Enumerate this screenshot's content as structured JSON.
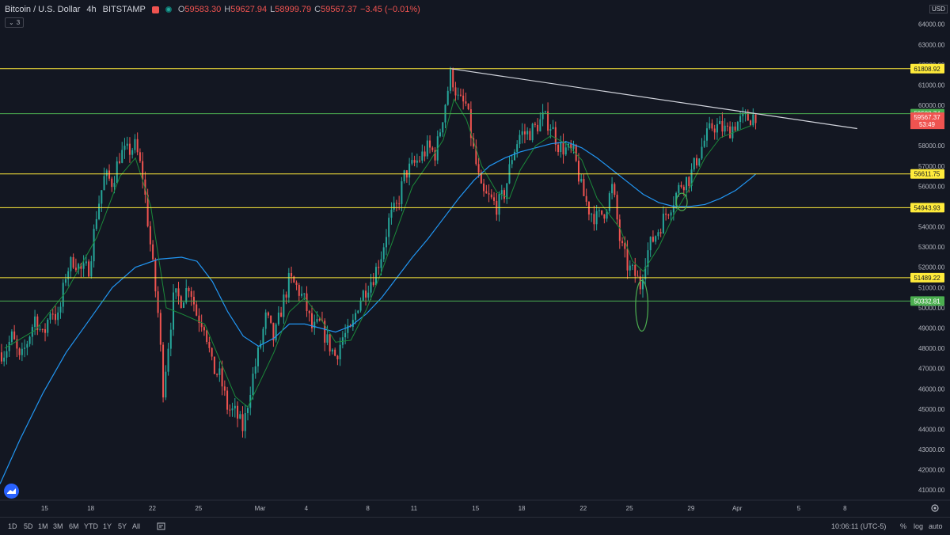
{
  "header": {
    "symbol": "Bitcoin / U.S. Dollar",
    "interval": "4h",
    "exchange": "BITSTAMP",
    "ohlc": [
      {
        "k": "O",
        "v": "59583.30"
      },
      {
        "k": "H",
        "v": "59627.94"
      },
      {
        "k": "L",
        "v": "58999.79"
      },
      {
        "k": "C",
        "v": "59567.37"
      }
    ],
    "change": "−3.45 (−0.01%)",
    "indicator_count": "3",
    "currency": "USD"
  },
  "colors": {
    "bg": "#131722",
    "up": "#26a69a",
    "down": "#ef5350",
    "yellow": "#ffeb3b",
    "green_line": "#4caf50",
    "ma_blue": "#2196f3",
    "ma_green": "#1b8a3a",
    "trendline": "#d1d4dc"
  },
  "bottom": {
    "ranges": [
      "1D",
      "5D",
      "1M",
      "3M",
      "6M",
      "YTD",
      "1Y",
      "5Y",
      "All"
    ],
    "time": "10:06:11 (UTC-5)",
    "pct": "%",
    "log": "log",
    "auto": "auto"
  },
  "chart_data": {
    "type": "candlestick",
    "title": "Bitcoin / U.S. Dollar · 4h · BITSTAMP",
    "ylim": [
      40500,
      65200
    ],
    "y_ticks": [
      41000,
      42000,
      43000,
      44000,
      45000,
      46000,
      47000,
      48000,
      49000,
      50000,
      51000,
      52000,
      53000,
      54000,
      55000,
      56000,
      57000,
      58000,
      59000,
      60000,
      61000,
      62000,
      63000,
      64000
    ],
    "y_tick_labels": [
      "41000.00",
      "42000.00",
      "43000.00",
      "44000.00",
      "45000.00",
      "46000.00",
      "47000.00",
      "48000.00",
      "49000.00",
      "50000.00",
      "51000.00",
      "52000.00",
      "53000.00",
      "54000.00",
      "55000.00",
      "56000.00",
      "57000.00",
      "58000.00",
      "59000.00",
      "60000.00",
      "61000.00",
      "62000.00",
      "63000.00",
      "64000.00"
    ],
    "x_ticks": [
      {
        "label": "15",
        "day": 14.6
      },
      {
        "label": "18",
        "day": 17.6
      },
      {
        "label": "22",
        "day": 21.6
      },
      {
        "label": "25",
        "day": 24.6
      },
      {
        "label": "Mar",
        "day": 28.6
      },
      {
        "label": "4",
        "day": 31.6
      },
      {
        "label": "8",
        "day": 35.6
      },
      {
        "label": "11",
        "day": 38.6
      },
      {
        "label": "15",
        "day": 42.6
      },
      {
        "label": "18",
        "day": 45.6
      },
      {
        "label": "22",
        "day": 49.6
      },
      {
        "label": "25",
        "day": 52.6
      },
      {
        "label": "29",
        "day": 56.6
      },
      {
        "label": "Apr",
        "day": 59.6
      },
      {
        "label": "5",
        "day": 63.6
      },
      {
        "label": "8",
        "day": 66.6
      }
    ],
    "x_range_days": [
      11.7,
      70.7
    ],
    "last_bar_day": 60.8,
    "closes": [
      [
        12.0,
        47800
      ],
      [
        12.5,
        48600
      ],
      [
        13.0,
        47300
      ],
      [
        13.5,
        48400
      ],
      [
        14.0,
        49600
      ],
      [
        14.5,
        48500
      ],
      [
        15.0,
        50000
      ],
      [
        15.5,
        49400
      ],
      [
        16.0,
        51800
      ],
      [
        16.5,
        52400
      ],
      [
        17.0,
        51800
      ],
      [
        17.5,
        52000
      ],
      [
        18.0,
        54800
      ],
      [
        18.5,
        56500
      ],
      [
        19.0,
        56200
      ],
      [
        19.5,
        57600
      ],
      [
        20.0,
        57700
      ],
      [
        20.5,
        58000
      ],
      [
        21.0,
        56400
      ],
      [
        21.5,
        52900
      ],
      [
        22.0,
        49500
      ],
      [
        22.3,
        46000
      ],
      [
        22.6,
        48000
      ],
      [
        23.0,
        50600
      ],
      [
        23.5,
        50400
      ],
      [
        24.0,
        51200
      ],
      [
        24.5,
        49600
      ],
      [
        25.0,
        49200
      ],
      [
        25.5,
        47000
      ],
      [
        26.0,
        46600
      ],
      [
        26.5,
        45000
      ],
      [
        27.0,
        44800
      ],
      [
        27.5,
        44000
      ],
      [
        28.0,
        46200
      ],
      [
        28.5,
        47800
      ],
      [
        29.0,
        49600
      ],
      [
        29.5,
        48400
      ],
      [
        30.0,
        50000
      ],
      [
        30.5,
        51400
      ],
      [
        31.0,
        51000
      ],
      [
        31.5,
        50300
      ],
      [
        32.0,
        48900
      ],
      [
        32.5,
        49200
      ],
      [
        33.0,
        48300
      ],
      [
        33.5,
        47600
      ],
      [
        34.0,
        48600
      ],
      [
        34.5,
        48800
      ],
      [
        35.0,
        50300
      ],
      [
        35.5,
        51000
      ],
      [
        36.0,
        51600
      ],
      [
        36.5,
        52700
      ],
      [
        37.0,
        54400
      ],
      [
        37.5,
        55000
      ],
      [
        38.0,
        56600
      ],
      [
        38.5,
        57000
      ],
      [
        39.0,
        57400
      ],
      [
        39.5,
        57900
      ],
      [
        40.0,
        57600
      ],
      [
        40.5,
        59600
      ],
      [
        41.0,
        61600
      ],
      [
        41.5,
        60200
      ],
      [
        42.0,
        60000
      ],
      [
        42.5,
        57600
      ],
      [
        43.0,
        55600
      ],
      [
        43.5,
        55400
      ],
      [
        44.0,
        55000
      ],
      [
        44.5,
        55700
      ],
      [
        45.0,
        57600
      ],
      [
        45.5,
        58600
      ],
      [
        46.0,
        58600
      ],
      [
        46.5,
        58900
      ],
      [
        47.0,
        59400
      ],
      [
        47.5,
        59000
      ],
      [
        48.0,
        58000
      ],
      [
        48.5,
        57800
      ],
      [
        49.0,
        57600
      ],
      [
        49.5,
        55800
      ],
      [
        50.0,
        54800
      ],
      [
        50.5,
        54400
      ],
      [
        51.0,
        54800
      ],
      [
        51.5,
        56000
      ],
      [
        52.0,
        53200
      ],
      [
        52.5,
        52000
      ],
      [
        53.0,
        51600
      ],
      [
        53.3,
        51100
      ],
      [
        53.6,
        52400
      ],
      [
        54.0,
        53200
      ],
      [
        54.5,
        53900
      ],
      [
        55.0,
        54700
      ],
      [
        55.5,
        55400
      ],
      [
        56.0,
        56200
      ],
      [
        56.5,
        56400
      ],
      [
        57.0,
        57400
      ],
      [
        57.5,
        58300
      ],
      [
        58.0,
        59000
      ],
      [
        58.5,
        58900
      ],
      [
        59.0,
        58700
      ],
      [
        59.5,
        59100
      ],
      [
        60.0,
        59300
      ],
      [
        60.5,
        59400
      ],
      [
        60.8,
        59567
      ]
    ],
    "ma_fast": [
      [
        12.0,
        48000
      ],
      [
        14.0,
        48900
      ],
      [
        16.0,
        50800
      ],
      [
        18.0,
        53500
      ],
      [
        19.5,
        56500
      ],
      [
        20.5,
        57400
      ],
      [
        21.5,
        55000
      ],
      [
        22.5,
        50000
      ],
      [
        23.5,
        49700
      ],
      [
        25.0,
        49200
      ],
      [
        26.0,
        47400
      ],
      [
        27.0,
        45600
      ],
      [
        27.8,
        45100
      ],
      [
        28.5,
        46200
      ],
      [
        29.5,
        47800
      ],
      [
        30.5,
        49800
      ],
      [
        31.5,
        50500
      ],
      [
        32.5,
        49500
      ],
      [
        33.5,
        48300
      ],
      [
        34.5,
        48400
      ],
      [
        35.5,
        49900
      ],
      [
        36.5,
        51800
      ],
      [
        37.5,
        53900
      ],
      [
        38.5,
        56000
      ],
      [
        39.5,
        57100
      ],
      [
        40.5,
        58300
      ],
      [
        41.2,
        60300
      ],
      [
        42.0,
        59300
      ],
      [
        43.0,
        57000
      ],
      [
        44.0,
        55700
      ],
      [
        44.8,
        55400
      ],
      [
        45.5,
        56800
      ],
      [
        46.5,
        58000
      ],
      [
        47.5,
        58500
      ],
      [
        48.5,
        58100
      ],
      [
        49.5,
        57300
      ],
      [
        50.5,
        55400
      ],
      [
        51.5,
        54400
      ],
      [
        52.0,
        53900
      ],
      [
        52.8,
        52300
      ],
      [
        53.5,
        51800
      ],
      [
        54.5,
        53000
      ],
      [
        55.5,
        54600
      ],
      [
        56.5,
        55900
      ],
      [
        57.5,
        57400
      ],
      [
        58.5,
        58400
      ],
      [
        59.5,
        58700
      ],
      [
        60.5,
        59000
      ]
    ],
    "ma_slow": [
      [
        11.7,
        41300
      ],
      [
        13.0,
        43500
      ],
      [
        14.5,
        45800
      ],
      [
        16.0,
        47800
      ],
      [
        17.5,
        49400
      ],
      [
        19.0,
        51000
      ],
      [
        20.5,
        52000
      ],
      [
        22.0,
        52400
      ],
      [
        23.5,
        52500
      ],
      [
        24.5,
        52300
      ],
      [
        25.5,
        51300
      ],
      [
        26.5,
        49800
      ],
      [
        27.5,
        48600
      ],
      [
        28.5,
        48100
      ],
      [
        29.5,
        48500
      ],
      [
        30.5,
        49200
      ],
      [
        31.5,
        49200
      ],
      [
        32.5,
        49000
      ],
      [
        33.5,
        48800
      ],
      [
        34.5,
        49100
      ],
      [
        35.5,
        49700
      ],
      [
        36.5,
        50500
      ],
      [
        37.5,
        51500
      ],
      [
        38.5,
        52500
      ],
      [
        39.5,
        53400
      ],
      [
        40.5,
        54400
      ],
      [
        41.5,
        55400
      ],
      [
        42.5,
        56300
      ],
      [
        43.5,
        57000
      ],
      [
        44.5,
        57400
      ],
      [
        45.5,
        57700
      ],
      [
        46.5,
        57900
      ],
      [
        47.5,
        58100
      ],
      [
        48.5,
        58200
      ],
      [
        49.5,
        57900
      ],
      [
        50.5,
        57400
      ],
      [
        51.5,
        56800
      ],
      [
        52.5,
        56200
      ],
      [
        53.5,
        55600
      ],
      [
        54.5,
        55200
      ],
      [
        55.5,
        55000
      ],
      [
        56.5,
        55000
      ],
      [
        57.5,
        55100
      ],
      [
        58.5,
        55400
      ],
      [
        59.5,
        55800
      ],
      [
        60.5,
        56400
      ],
      [
        60.8,
        56600
      ]
    ],
    "horizontal_levels": [
      {
        "price": 61808.92,
        "label": "61808.92",
        "color": "yellow"
      },
      {
        "price": 56611.75,
        "label": "56611.75",
        "color": "yellow"
      },
      {
        "price": 54943.93,
        "label": "54943.93",
        "color": "yellow"
      },
      {
        "price": 51489.22,
        "label": "51489.22",
        "color": "yellow"
      },
      {
        "price": 59588.74,
        "label": "59588.74",
        "color": "green"
      },
      {
        "price": 50332.81,
        "label": "50332.81",
        "color": "green"
      }
    ],
    "current_price": {
      "price": 59567.37,
      "label": "59567.37",
      "countdown": "53:49"
    },
    "trendline": {
      "from": [
        41.0,
        61808
      ],
      "to": [
        67.4,
        58850
      ]
    },
    "ellipses": [
      {
        "day": 53.4,
        "price": 50100,
        "rx_days": 0.4,
        "ry_price": 1250
      },
      {
        "day": 56.0,
        "price": 55230,
        "rx_days": 0.35,
        "ry_price": 430
      }
    ]
  }
}
